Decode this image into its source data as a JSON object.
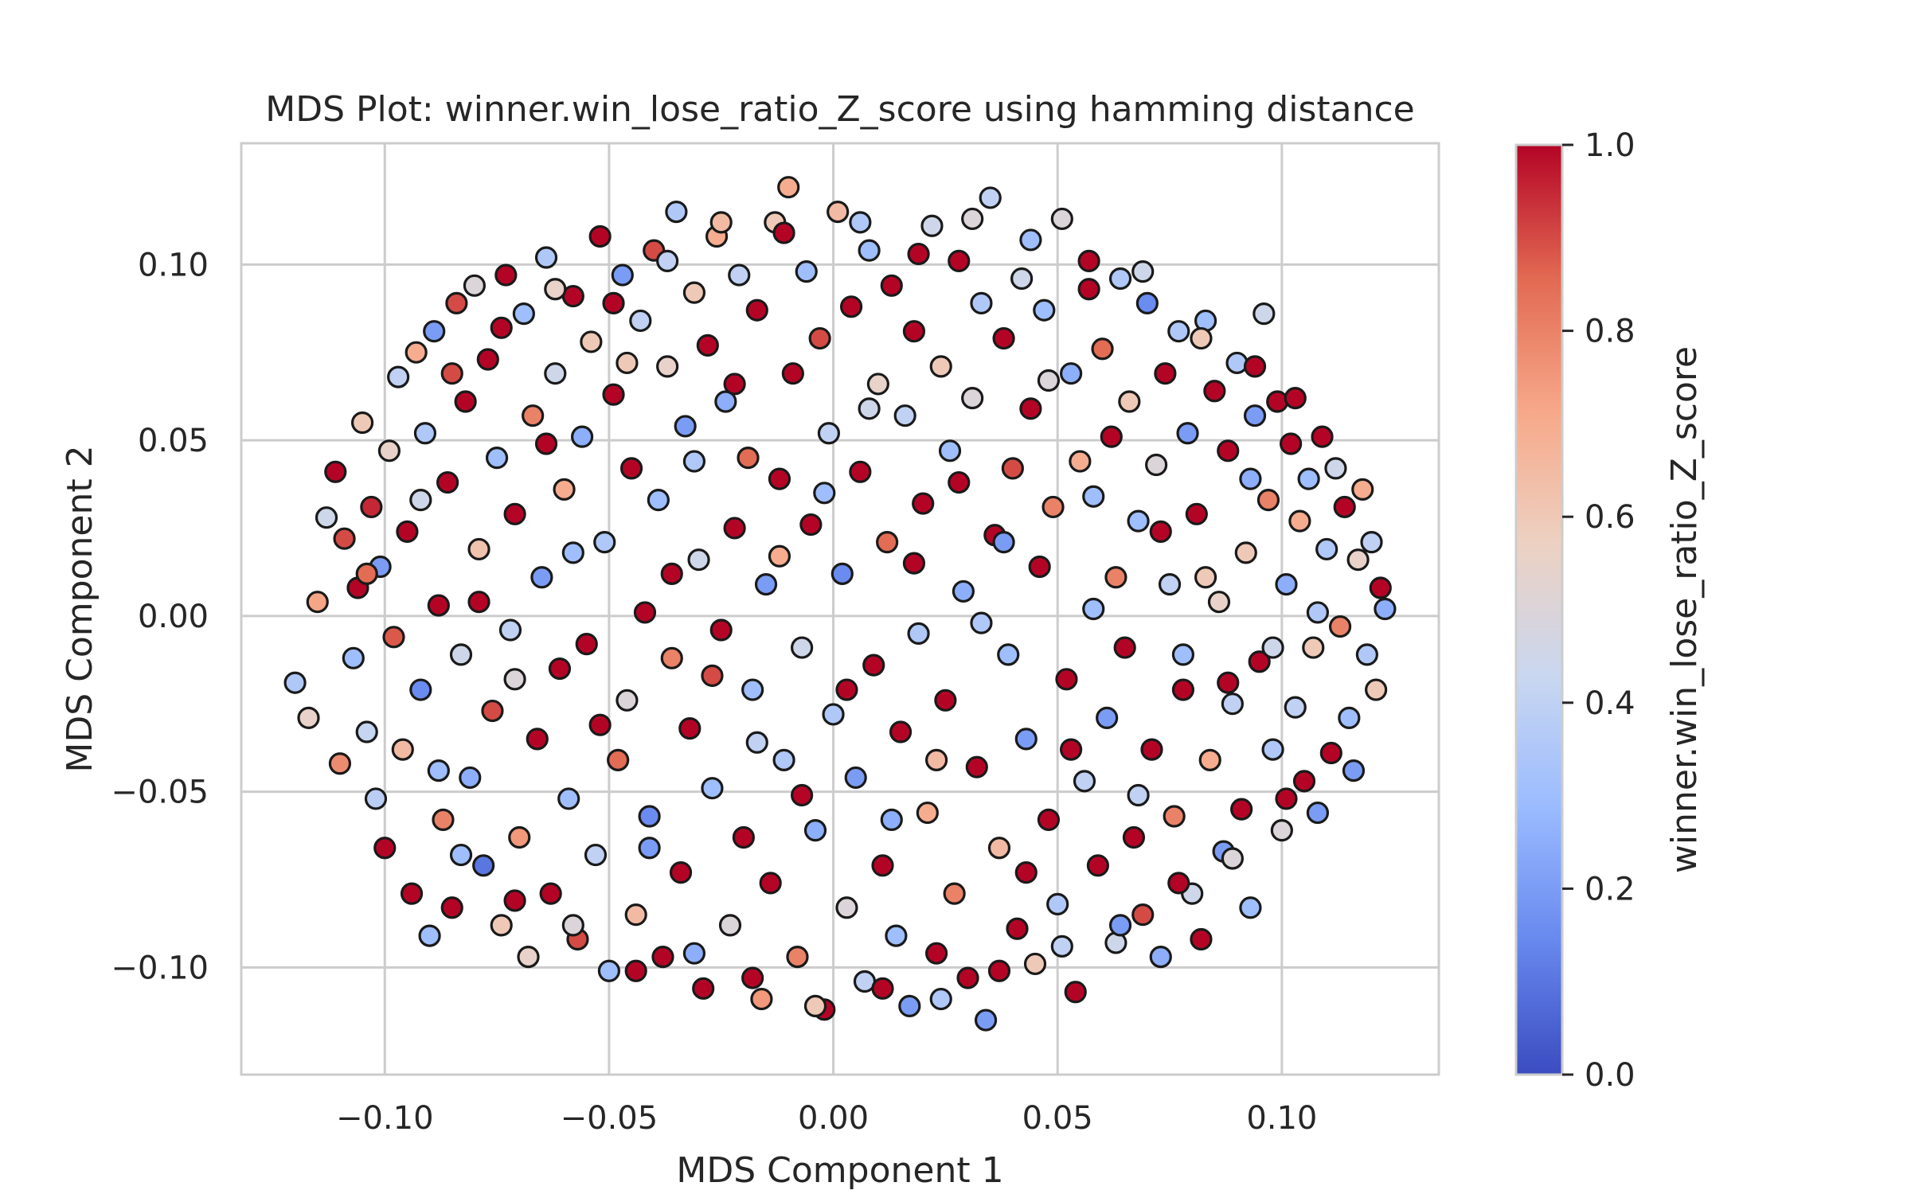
{
  "chart_data": {
    "type": "scatter",
    "title": "MDS Plot: winner.win_lose_ratio_Z_score using hamming distance",
    "xlabel": "MDS Component 1",
    "ylabel": "MDS Component 2",
    "xlim": [
      -0.132,
      0.135
    ],
    "ylim": [
      -0.1305,
      0.1345
    ],
    "xticks": [
      -0.1,
      -0.05,
      0.0,
      0.05,
      0.1
    ],
    "xtick_labels": [
      "−0.10",
      "−0.05",
      "0.00",
      "0.05",
      "0.10"
    ],
    "yticks": [
      -0.1,
      -0.05,
      0.0,
      0.05,
      0.1
    ],
    "ytick_labels": [
      "−0.10",
      "−0.05",
      "0.00",
      "0.05",
      "0.10"
    ],
    "grid": true,
    "colorbar": {
      "label": "winner.win_lose_ratio_Z_score",
      "colormap": "coolwarm",
      "range": [
        0.0,
        1.0
      ],
      "ticks": [
        0.0,
        0.2,
        0.4,
        0.6,
        0.8,
        1.0
      ],
      "tick_labels": [
        "0.0",
        "0.2",
        "0.4",
        "0.6",
        "0.8",
        "1.0"
      ],
      "stops": [
        "#3b4cc0",
        "#6788ee",
        "#9abbff",
        "#c9d7f0",
        "#edd1c2",
        "#f7a889",
        "#e26952",
        "#b40426"
      ]
    },
    "marker_edge_color": "#1a1a1a",
    "points": [
      [
        -0.12,
        -0.019,
        0.35
      ],
      [
        -0.117,
        -0.029,
        0.55
      ],
      [
        -0.115,
        0.004,
        0.72
      ],
      [
        -0.113,
        0.028,
        0.45
      ],
      [
        -0.111,
        0.041,
        1.0
      ],
      [
        -0.11,
        -0.042,
        0.78
      ],
      [
        -0.109,
        0.022,
        0.9
      ],
      [
        -0.107,
        -0.012,
        0.3
      ],
      [
        -0.106,
        0.008,
        1.0
      ],
      [
        -0.105,
        0.055,
        0.6
      ],
      [
        -0.104,
        -0.033,
        0.42
      ],
      [
        -0.103,
        0.031,
        0.95
      ],
      [
        -0.102,
        -0.052,
        0.38
      ],
      [
        -0.101,
        0.014,
        0.2
      ],
      [
        -0.1,
        -0.066,
        1.0
      ],
      [
        -0.099,
        0.047,
        0.55
      ],
      [
        -0.098,
        -0.006,
        0.88
      ],
      [
        -0.097,
        0.068,
        0.4
      ],
      [
        -0.096,
        -0.038,
        0.65
      ],
      [
        -0.095,
        0.024,
        1.0
      ],
      [
        -0.094,
        -0.079,
        1.0
      ],
      [
        -0.093,
        0.075,
        0.7
      ],
      [
        -0.092,
        -0.021,
        0.15
      ],
      [
        -0.091,
        0.052,
        0.35
      ],
      [
        -0.09,
        -0.091,
        0.3
      ],
      [
        -0.089,
        0.081,
        0.2
      ],
      [
        -0.088,
        0.003,
        1.0
      ],
      [
        -0.087,
        -0.058,
        0.8
      ],
      [
        -0.086,
        0.038,
        1.0
      ],
      [
        -0.085,
        -0.083,
        1.0
      ],
      [
        -0.084,
        0.089,
        0.9
      ],
      [
        -0.083,
        -0.011,
        0.45
      ],
      [
        -0.082,
        0.061,
        1.0
      ],
      [
        -0.081,
        -0.046,
        0.25
      ],
      [
        -0.08,
        0.094,
        0.5
      ],
      [
        -0.079,
        0.019,
        0.62
      ],
      [
        -0.078,
        -0.071,
        0.1
      ],
      [
        -0.077,
        0.073,
        1.0
      ],
      [
        -0.076,
        -0.027,
        0.9
      ],
      [
        -0.075,
        0.045,
        0.3
      ],
      [
        -0.074,
        -0.088,
        0.6
      ],
      [
        -0.073,
        0.097,
        1.0
      ],
      [
        -0.072,
        -0.004,
        0.4
      ],
      [
        -0.071,
        0.029,
        1.0
      ],
      [
        -0.07,
        -0.063,
        0.75
      ],
      [
        -0.069,
        0.086,
        0.3
      ],
      [
        -0.068,
        -0.097,
        0.55
      ],
      [
        -0.067,
        0.057,
        0.8
      ],
      [
        -0.066,
        -0.035,
        1.0
      ],
      [
        -0.065,
        0.011,
        0.2
      ],
      [
        -0.064,
        0.102,
        0.35
      ],
      [
        -0.063,
        -0.079,
        1.0
      ],
      [
        -0.062,
        0.069,
        0.45
      ],
      [
        -0.061,
        -0.015,
        1.0
      ],
      [
        -0.06,
        0.036,
        0.7
      ],
      [
        -0.059,
        -0.052,
        0.3
      ],
      [
        -0.058,
        0.091,
        1.0
      ],
      [
        -0.057,
        -0.092,
        0.9
      ],
      [
        -0.056,
        0.051,
        0.25
      ],
      [
        -0.055,
        -0.008,
        1.0
      ],
      [
        -0.054,
        0.078,
        0.6
      ],
      [
        -0.053,
        -0.068,
        0.4
      ],
      [
        -0.052,
        0.108,
        1.0
      ],
      [
        -0.051,
        0.021,
        0.35
      ],
      [
        -0.05,
        -0.101,
        0.3
      ],
      [
        -0.049,
        0.063,
        1.0
      ],
      [
        -0.048,
        -0.041,
        0.85
      ],
      [
        -0.047,
        0.097,
        0.2
      ],
      [
        -0.046,
        -0.024,
        0.5
      ],
      [
        -0.045,
        0.042,
        1.0
      ],
      [
        -0.044,
        -0.085,
        0.65
      ],
      [
        -0.043,
        0.084,
        0.4
      ],
      [
        -0.042,
        0.001,
        1.0
      ],
      [
        -0.041,
        -0.057,
        0.15
      ],
      [
        -0.04,
        0.104,
        0.9
      ],
      [
        -0.039,
        0.033,
        0.3
      ],
      [
        -0.038,
        -0.097,
        1.0
      ],
      [
        -0.037,
        0.071,
        0.55
      ],
      [
        -0.036,
        -0.012,
        0.8
      ],
      [
        -0.035,
        0.115,
        0.35
      ],
      [
        -0.034,
        -0.073,
        1.0
      ],
      [
        -0.033,
        0.054,
        0.2
      ],
      [
        -0.032,
        -0.032,
        1.0
      ],
      [
        -0.031,
        0.092,
        0.6
      ],
      [
        -0.03,
        0.016,
        0.45
      ],
      [
        -0.029,
        -0.106,
        1.0
      ],
      [
        -0.028,
        0.077,
        1.0
      ],
      [
        -0.027,
        -0.049,
        0.3
      ],
      [
        -0.026,
        0.108,
        0.7
      ],
      [
        -0.025,
        -0.004,
        1.0
      ],
      [
        -0.024,
        0.061,
        0.25
      ],
      [
        -0.023,
        -0.088,
        0.5
      ],
      [
        -0.022,
        0.025,
        1.0
      ],
      [
        -0.021,
        0.097,
        0.4
      ],
      [
        -0.02,
        -0.063,
        1.0
      ],
      [
        -0.019,
        0.045,
        0.85
      ],
      [
        -0.018,
        -0.021,
        0.3
      ],
      [
        -0.017,
        0.087,
        1.0
      ],
      [
        -0.016,
        -0.109,
        0.75
      ],
      [
        -0.015,
        0.009,
        0.2
      ],
      [
        -0.014,
        -0.076,
        1.0
      ],
      [
        -0.013,
        0.112,
        0.6
      ],
      [
        -0.012,
        0.039,
        1.0
      ],
      [
        -0.011,
        -0.041,
        0.35
      ],
      [
        -0.01,
        0.122,
        0.7
      ],
      [
        -0.009,
        0.069,
        1.0
      ],
      [
        -0.008,
        -0.097,
        0.8
      ],
      [
        -0.007,
        -0.009,
        0.45
      ],
      [
        -0.006,
        0.098,
        0.3
      ],
      [
        -0.005,
        0.026,
        1.0
      ],
      [
        -0.004,
        -0.061,
        0.25
      ],
      [
        -0.003,
        0.079,
        0.9
      ],
      [
        -0.002,
        -0.112,
        1.0
      ],
      [
        -0.001,
        0.052,
        0.4
      ],
      [
        0.0,
        -0.028,
        0.35
      ],
      [
        0.001,
        0.115,
        0.65
      ],
      [
        0.002,
        0.012,
        0.15
      ],
      [
        0.003,
        -0.083,
        0.5
      ],
      [
        0.004,
        0.088,
        1.0
      ],
      [
        0.005,
        -0.046,
        0.2
      ],
      [
        0.006,
        0.041,
        1.0
      ],
      [
        0.007,
        -0.104,
        0.4
      ],
      [
        0.008,
        0.104,
        0.3
      ],
      [
        0.009,
        -0.014,
        1.0
      ],
      [
        0.01,
        0.066,
        0.55
      ],
      [
        0.011,
        -0.071,
        1.0
      ],
      [
        0.012,
        0.021,
        0.85
      ],
      [
        0.013,
        0.094,
        1.0
      ],
      [
        0.014,
        -0.091,
        0.3
      ],
      [
        0.015,
        -0.033,
        1.0
      ],
      [
        0.016,
        0.057,
        0.4
      ],
      [
        0.017,
        -0.111,
        0.2
      ],
      [
        0.018,
        0.081,
        1.0
      ],
      [
        0.019,
        -0.005,
        0.35
      ],
      [
        0.02,
        0.032,
        1.0
      ],
      [
        0.021,
        -0.056,
        0.7
      ],
      [
        0.022,
        0.111,
        0.45
      ],
      [
        0.023,
        -0.096,
        1.0
      ],
      [
        0.024,
        0.071,
        0.6
      ],
      [
        0.025,
        -0.024,
        1.0
      ],
      [
        0.026,
        0.047,
        0.3
      ],
      [
        0.027,
        -0.079,
        0.8
      ],
      [
        0.028,
        0.101,
        1.0
      ],
      [
        0.029,
        0.007,
        0.25
      ],
      [
        0.03,
        -0.103,
        1.0
      ],
      [
        0.031,
        0.062,
        0.5
      ],
      [
        0.032,
        -0.043,
        1.0
      ],
      [
        0.033,
        0.089,
        0.35
      ],
      [
        0.034,
        -0.115,
        0.2
      ],
      [
        0.035,
        0.119,
        0.4
      ],
      [
        0.036,
        0.023,
        1.0
      ],
      [
        0.037,
        -0.066,
        0.65
      ],
      [
        0.038,
        0.079,
        1.0
      ],
      [
        0.039,
        -0.011,
        0.3
      ],
      [
        0.04,
        0.042,
        0.9
      ],
      [
        0.041,
        -0.089,
        1.0
      ],
      [
        0.042,
        0.096,
        0.45
      ],
      [
        0.043,
        -0.035,
        0.2
      ],
      [
        0.044,
        0.059,
        1.0
      ],
      [
        0.045,
        -0.099,
        0.6
      ],
      [
        0.046,
        0.014,
        1.0
      ],
      [
        0.047,
        0.087,
        0.3
      ],
      [
        0.048,
        -0.058,
        1.0
      ],
      [
        0.049,
        0.031,
        0.8
      ],
      [
        0.05,
        -0.082,
        0.35
      ],
      [
        0.051,
        0.113,
        0.5
      ],
      [
        0.052,
        -0.018,
        1.0
      ],
      [
        0.053,
        0.069,
        0.25
      ],
      [
        0.054,
        -0.107,
        1.0
      ],
      [
        0.055,
        0.044,
        0.7
      ],
      [
        0.056,
        -0.047,
        0.4
      ],
      [
        0.057,
        0.093,
        1.0
      ],
      [
        0.058,
        0.002,
        0.3
      ],
      [
        0.059,
        -0.071,
        1.0
      ],
      [
        0.06,
        0.076,
        0.85
      ],
      [
        0.061,
        -0.029,
        0.2
      ],
      [
        0.062,
        0.051,
        1.0
      ],
      [
        0.063,
        -0.093,
        0.45
      ],
      [
        0.064,
        0.096,
        0.35
      ],
      [
        0.065,
        -0.009,
        1.0
      ],
      [
        0.066,
        0.061,
        0.6
      ],
      [
        0.067,
        -0.063,
        1.0
      ],
      [
        0.068,
        0.027,
        0.3
      ],
      [
        0.069,
        -0.085,
        0.9
      ],
      [
        0.07,
        0.089,
        0.15
      ],
      [
        0.071,
        -0.038,
        1.0
      ],
      [
        0.072,
        0.043,
        0.5
      ],
      [
        0.073,
        -0.097,
        0.25
      ],
      [
        0.074,
        0.069,
        1.0
      ],
      [
        0.075,
        0.009,
        0.4
      ],
      [
        0.076,
        -0.057,
        0.8
      ],
      [
        0.077,
        0.081,
        0.35
      ],
      [
        0.078,
        -0.021,
        1.0
      ],
      [
        0.079,
        0.052,
        0.2
      ],
      [
        0.08,
        -0.079,
        0.45
      ],
      [
        0.081,
        0.029,
        1.0
      ],
      [
        0.082,
        -0.092,
        1.0
      ],
      [
        0.083,
        0.084,
        0.3
      ],
      [
        0.084,
        -0.041,
        0.7
      ],
      [
        0.085,
        0.064,
        1.0
      ],
      [
        0.086,
        0.004,
        0.55
      ],
      [
        0.087,
        -0.067,
        0.2
      ],
      [
        0.088,
        0.047,
        1.0
      ],
      [
        0.089,
        -0.025,
        0.4
      ],
      [
        0.09,
        0.072,
        0.35
      ],
      [
        0.091,
        -0.055,
        1.0
      ],
      [
        0.092,
        0.018,
        0.6
      ],
      [
        0.093,
        -0.083,
        0.3
      ],
      [
        0.094,
        0.057,
        0.2
      ],
      [
        0.095,
        -0.013,
        1.0
      ],
      [
        0.096,
        0.086,
        0.45
      ],
      [
        0.097,
        0.033,
        0.8
      ],
      [
        0.098,
        -0.038,
        0.35
      ],
      [
        0.099,
        0.061,
        1.0
      ],
      [
        0.1,
        -0.061,
        0.5
      ],
      [
        0.101,
        0.009,
        0.25
      ],
      [
        0.102,
        0.049,
        1.0
      ],
      [
        0.103,
        -0.026,
        0.4
      ],
      [
        0.104,
        0.027,
        0.7
      ],
      [
        0.105,
        -0.047,
        1.0
      ],
      [
        0.106,
        0.039,
        0.3
      ],
      [
        0.107,
        -0.009,
        0.6
      ],
      [
        0.108,
        -0.056,
        0.2
      ],
      [
        0.109,
        0.051,
        1.0
      ],
      [
        0.11,
        0.019,
        0.35
      ],
      [
        0.111,
        -0.039,
        1.0
      ],
      [
        0.112,
        0.042,
        0.45
      ],
      [
        0.113,
        -0.003,
        0.8
      ],
      [
        0.114,
        0.031,
        1.0
      ],
      [
        0.115,
        -0.029,
        0.3
      ],
      [
        0.116,
        -0.044,
        0.2
      ],
      [
        0.117,
        0.016,
        0.55
      ],
      [
        0.118,
        0.036,
        0.7
      ],
      [
        0.119,
        -0.011,
        0.35
      ],
      [
        0.12,
        0.021,
        0.4
      ],
      [
        0.121,
        -0.021,
        0.6
      ],
      [
        0.122,
        0.008,
        1.0
      ],
      [
        0.123,
        0.002,
        0.25
      ],
      [
        -0.104,
        0.012,
        0.85
      ],
      [
        -0.092,
        0.033,
        0.45
      ],
      [
        -0.088,
        -0.044,
        0.3
      ],
      [
        -0.079,
        0.004,
        1.0
      ],
      [
        -0.071,
        -0.018,
        0.5
      ],
      [
        -0.064,
        0.049,
        1.0
      ],
      [
        -0.058,
        0.018,
        0.3
      ],
      [
        -0.052,
        -0.031,
        1.0
      ],
      [
        -0.046,
        0.072,
        0.6
      ],
      [
        -0.041,
        -0.066,
        0.2
      ],
      [
        -0.036,
        0.012,
        1.0
      ],
      [
        -0.031,
        0.044,
        0.35
      ],
      [
        -0.027,
        -0.017,
        0.9
      ],
      [
        -0.022,
        0.066,
        1.0
      ],
      [
        -0.017,
        -0.036,
        0.4
      ],
      [
        -0.012,
        0.017,
        0.7
      ],
      [
        -0.007,
        -0.051,
        1.0
      ],
      [
        -0.002,
        0.035,
        0.3
      ],
      [
        0.003,
        -0.021,
        1.0
      ],
      [
        0.008,
        0.059,
        0.45
      ],
      [
        0.013,
        -0.058,
        0.25
      ],
      [
        0.018,
        0.015,
        1.0
      ],
      [
        0.023,
        -0.041,
        0.65
      ],
      [
        0.028,
        0.038,
        1.0
      ],
      [
        0.033,
        -0.002,
        0.35
      ],
      [
        0.038,
        0.021,
        0.2
      ],
      [
        0.043,
        -0.073,
        1.0
      ],
      [
        0.048,
        0.067,
        0.5
      ],
      [
        0.053,
        -0.038,
        1.0
      ],
      [
        0.058,
        0.034,
        0.3
      ],
      [
        0.063,
        0.011,
        0.8
      ],
      [
        0.068,
        -0.051,
        0.4
      ],
      [
        0.073,
        0.024,
        1.0
      ],
      [
        0.078,
        -0.011,
        0.3
      ],
      [
        0.083,
        0.011,
        0.6
      ],
      [
        0.088,
        -0.019,
        1.0
      ],
      [
        0.093,
        0.039,
        0.25
      ],
      [
        0.098,
        -0.009,
        0.45
      ],
      [
        0.103,
        0.062,
        1.0
      ],
      [
        0.108,
        0.001,
        0.35
      ],
      [
        -0.085,
        0.069,
        0.9
      ],
      [
        -0.074,
        0.082,
        1.0
      ],
      [
        -0.062,
        0.093,
        0.55
      ],
      [
        -0.049,
        0.089,
        1.0
      ],
      [
        -0.037,
        0.101,
        0.4
      ],
      [
        -0.025,
        0.112,
        0.65
      ],
      [
        -0.011,
        0.109,
        1.0
      ],
      [
        0.006,
        0.112,
        0.35
      ],
      [
        0.019,
        0.103,
        1.0
      ],
      [
        0.031,
        0.113,
        0.5
      ],
      [
        0.044,
        0.107,
        0.3
      ],
      [
        0.057,
        0.101,
        1.0
      ],
      [
        0.069,
        0.098,
        0.45
      ],
      [
        0.082,
        0.079,
        0.6
      ],
      [
        0.094,
        0.071,
        1.0
      ],
      [
        -0.083,
        -0.068,
        0.3
      ],
      [
        -0.071,
        -0.081,
        1.0
      ],
      [
        -0.058,
        -0.088,
        0.5
      ],
      [
        -0.044,
        -0.101,
        1.0
      ],
      [
        -0.031,
        -0.096,
        0.25
      ],
      [
        -0.018,
        -0.103,
        1.0
      ],
      [
        -0.004,
        -0.111,
        0.6
      ],
      [
        0.011,
        -0.106,
        1.0
      ],
      [
        0.024,
        -0.109,
        0.35
      ],
      [
        0.037,
        -0.101,
        1.0
      ],
      [
        0.051,
        -0.094,
        0.4
      ],
      [
        0.064,
        -0.088,
        0.2
      ],
      [
        0.077,
        -0.076,
        1.0
      ],
      [
        0.089,
        -0.069,
        0.5
      ],
      [
        0.101,
        -0.052,
        1.0
      ]
    ]
  }
}
